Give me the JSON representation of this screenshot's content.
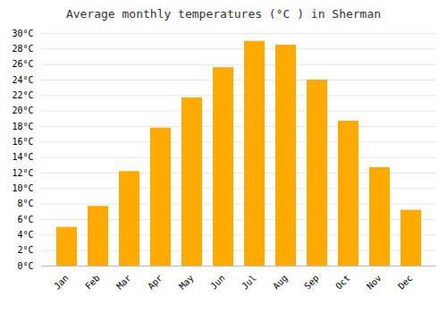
{
  "chart_data": {
    "type": "bar",
    "title": "Average monthly temperatures (°C ) in Sherman",
    "categories": [
      "Jan",
      "Feb",
      "Mar",
      "Apr",
      "May",
      "Jun",
      "Jul",
      "Aug",
      "Sep",
      "Oct",
      "Nov",
      "Dec"
    ],
    "values": [
      5.0,
      7.7,
      12.2,
      17.8,
      21.7,
      25.6,
      29.0,
      28.5,
      24.0,
      18.7,
      12.7,
      7.2
    ],
    "color": "#FFAA00",
    "ylim": [
      0,
      30
    ],
    "yticks": [
      {
        "value": 0,
        "label": "0°C"
      },
      {
        "value": 2,
        "label": "2°C"
      },
      {
        "value": 4,
        "label": "4°C"
      },
      {
        "value": 6,
        "label": "6°C"
      },
      {
        "value": 8,
        "label": "8°C"
      },
      {
        "value": 10,
        "label": "10°C"
      },
      {
        "value": 12,
        "label": "12°C"
      },
      {
        "value": 14,
        "label": "14°C"
      },
      {
        "value": 16,
        "label": "16°C"
      },
      {
        "value": 18,
        "label": "18°C"
      },
      {
        "value": 20,
        "label": "20°C"
      },
      {
        "value": 22,
        "label": "22°C"
      },
      {
        "value": 24,
        "label": "24°C"
      },
      {
        "value": 26,
        "label": "26°C"
      },
      {
        "value": 28,
        "label": "28°C"
      },
      {
        "value": 30,
        "label": "30°C"
      }
    ],
    "grid": true
  }
}
